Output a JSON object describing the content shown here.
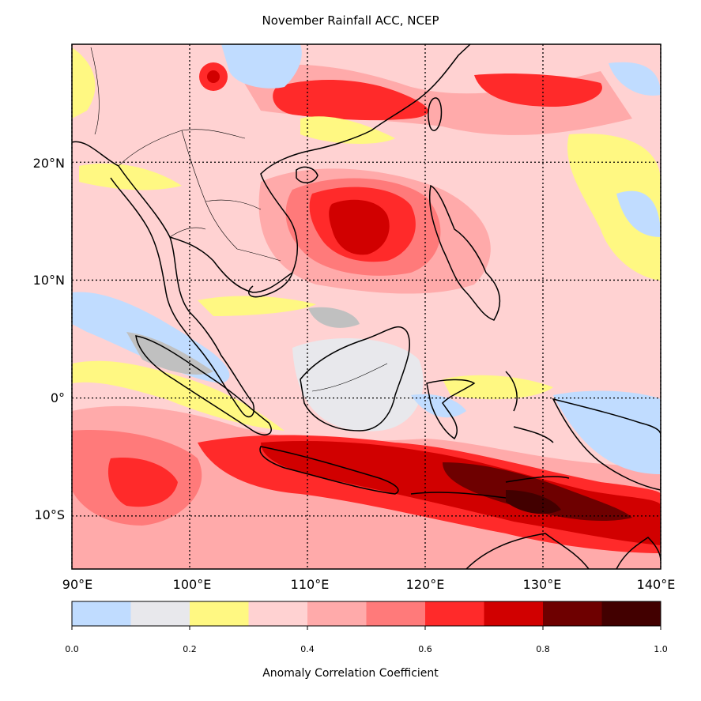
{
  "title": "November Rainfall ACC, NCEP",
  "colorbar": {
    "label": "Anomaly Correlation Coefficient",
    "ticks": [
      "0.0",
      "0.2",
      "0.4",
      "0.6",
      "0.8",
      "1.0"
    ],
    "bins": [
      {
        "min": 0.0,
        "max": 0.1,
        "color": "#c0dcff"
      },
      {
        "min": 0.1,
        "max": 0.2,
        "color": "#e8e8ec"
      },
      {
        "min": 0.2,
        "max": 0.3,
        "color": "#fff882"
      },
      {
        "min": 0.3,
        "max": 0.4,
        "color": "#ffd2d2"
      },
      {
        "min": 0.4,
        "max": 0.5,
        "color": "#ffaaaa"
      },
      {
        "min": 0.5,
        "max": 0.6,
        "color": "#ff7a7a"
      },
      {
        "min": 0.6,
        "max": 0.7,
        "color": "#ff2a2a"
      },
      {
        "min": 0.7,
        "max": 0.8,
        "color": "#d10000"
      },
      {
        "min": 0.8,
        "max": 0.9,
        "color": "#6e0000"
      },
      {
        "min": 0.9,
        "max": 1.0,
        "color": "#420000"
      }
    ],
    "below_zero_color": "#c0c0c0"
  },
  "map": {
    "lon_range": [
      90,
      140
    ],
    "lat_range": [
      -14.5,
      30
    ],
    "lon_labels": [
      "90°E",
      "100°E",
      "110°E",
      "120°E",
      "130°E",
      "140°E"
    ],
    "lat_labels": [
      "20°N",
      "10°N",
      "0°",
      "10°S"
    ],
    "grid_lons": [
      90,
      100,
      110,
      120,
      130,
      140
    ],
    "grid_lats": [
      20,
      10,
      0,
      -10
    ]
  }
}
